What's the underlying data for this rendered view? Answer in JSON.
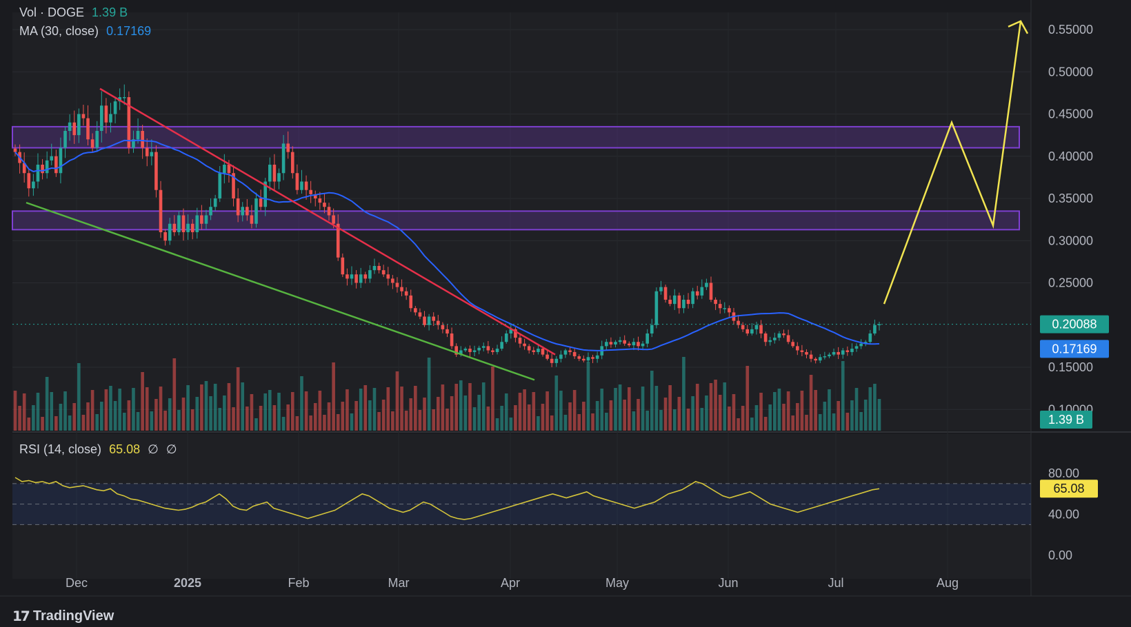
{
  "legend": {
    "vol_label": "Vol · DOGE",
    "vol_value": "1.39 B",
    "ma_label": "MA (30, close)",
    "ma_value": "0.17169",
    "rsi_label": "RSI (14, close)",
    "rsi_value": "65.08",
    "rsi_extra1": "∅",
    "rsi_extra2": "∅"
  },
  "branding": {
    "name": "TradingView"
  },
  "colors": {
    "background": "#1a1b1f",
    "up": "#26a69a",
    "down": "#ef5350",
    "ma": "#2962ff",
    "rsi": "#d4c43a",
    "zone": "#7e3fd1",
    "trend_down": "#e6304a",
    "trend_support": "#57b440",
    "projection": "#f1e451"
  },
  "chart_data": {
    "type": "candlestick",
    "symbol": "DOGE",
    "price_axis": {
      "ticks": [
        "0.55000",
        "0.50000",
        "0.45000",
        "0.40000",
        "0.35000",
        "0.30000",
        "0.25000",
        "0.15000",
        "0.10000"
      ],
      "range": [
        0.08,
        0.58
      ],
      "current_price": "0.20088",
      "ma_badge": "0.17169",
      "vol_badge": "1.39 B"
    },
    "time_axis": {
      "labels": [
        "Dec",
        "2025",
        "Feb",
        "Mar",
        "Apr",
        "May",
        "Jun",
        "Jul",
        "Aug"
      ]
    },
    "ohlc_close": [
      0.405,
      0.392,
      0.38,
      0.362,
      0.37,
      0.39,
      0.38,
      0.395,
      0.4,
      0.38,
      0.41,
      0.43,
      0.44,
      0.425,
      0.45,
      0.445,
      0.42,
      0.41,
      0.43,
      0.46,
      0.44,
      0.45,
      0.465,
      0.47,
      0.47,
      0.41,
      0.42,
      0.43,
      0.41,
      0.4,
      0.405,
      0.36,
      0.31,
      0.3,
      0.32,
      0.31,
      0.33,
      0.31,
      0.32,
      0.31,
      0.33,
      0.32,
      0.33,
      0.34,
      0.35,
      0.38,
      0.39,
      0.38,
      0.35,
      0.33,
      0.34,
      0.33,
      0.32,
      0.35,
      0.34,
      0.37,
      0.39,
      0.37,
      0.38,
      0.415,
      0.405,
      0.38,
      0.36,
      0.37,
      0.36,
      0.355,
      0.35,
      0.345,
      0.34,
      0.33,
      0.32,
      0.28,
      0.26,
      0.255,
      0.26,
      0.25,
      0.26,
      0.255,
      0.265,
      0.27,
      0.265,
      0.26,
      0.255,
      0.25,
      0.245,
      0.24,
      0.235,
      0.22,
      0.215,
      0.21,
      0.2,
      0.21,
      0.205,
      0.2,
      0.195,
      0.19,
      0.175,
      0.165,
      0.17,
      0.172,
      0.168,
      0.17,
      0.173,
      0.175,
      0.17,
      0.168,
      0.172,
      0.18,
      0.19,
      0.195,
      0.185,
      0.178,
      0.175,
      0.17,
      0.168,
      0.172,
      0.165,
      0.16,
      0.155,
      0.16,
      0.165,
      0.17,
      0.168,
      0.163,
      0.16,
      0.158,
      0.162,
      0.16,
      0.164,
      0.175,
      0.18,
      0.177,
      0.18,
      0.182,
      0.178,
      0.176,
      0.18,
      0.175,
      0.178,
      0.19,
      0.2,
      0.24,
      0.245,
      0.23,
      0.225,
      0.235,
      0.22,
      0.23,
      0.225,
      0.24,
      0.235,
      0.245,
      0.25,
      0.23,
      0.225,
      0.22,
      0.22,
      0.215,
      0.205,
      0.2,
      0.195,
      0.19,
      0.195,
      0.2,
      0.19,
      0.18,
      0.182,
      0.185,
      0.19,
      0.188,
      0.18,
      0.175,
      0.17,
      0.168,
      0.165,
      0.16,
      0.158,
      0.162,
      0.163,
      0.165,
      0.168,
      0.165,
      0.17,
      0.168,
      0.172,
      0.175,
      0.178,
      0.18,
      0.19,
      0.2,
      0.201
    ],
    "ma30_close_last": 0.17169,
    "resistance_zones": [
      {
        "low": 0.41,
        "high": 0.435
      },
      {
        "low": 0.313,
        "high": 0.335
      }
    ],
    "rsi": {
      "period": 14,
      "last": 65.08,
      "ticks": [
        "80.00",
        "40.00",
        "0.00"
      ],
      "values": [
        76,
        72,
        73,
        71,
        72,
        70,
        72,
        68,
        66,
        67,
        68,
        66,
        64,
        63,
        65,
        60,
        58,
        55,
        54,
        52,
        50,
        48,
        46,
        45,
        44,
        45,
        47,
        50,
        52,
        56,
        60,
        55,
        48,
        45,
        44,
        48,
        50,
        52,
        46,
        44,
        42,
        40,
        38,
        36,
        38,
        40,
        42,
        44,
        48,
        52,
        56,
        60,
        58,
        54,
        50,
        46,
        44,
        42,
        44,
        48,
        52,
        50,
        46,
        42,
        38,
        36,
        35,
        36,
        38,
        40,
        42,
        44,
        46,
        48,
        50,
        52,
        54,
        56,
        58,
        60,
        58,
        56,
        58,
        60,
        62,
        58,
        56,
        54,
        52,
        50,
        48,
        46,
        48,
        50,
        52,
        56,
        60,
        62,
        64,
        68,
        72,
        70,
        66,
        62,
        58,
        56,
        58,
        60,
        62,
        58,
        54,
        50,
        48,
        46,
        44,
        42,
        44,
        46,
        48,
        50,
        52,
        54,
        56,
        58,
        60,
        62,
        64,
        65
      ]
    }
  }
}
